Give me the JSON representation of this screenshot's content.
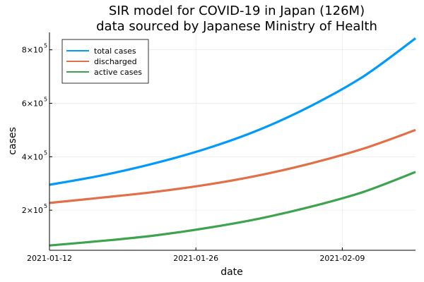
{
  "chart_data": {
    "type": "line",
    "title": "SIR model for COVID-19 in Japan (126M)",
    "subtitle": "data sourced by Japanese Ministry of Health",
    "xlabel": "date",
    "ylabel": "cases",
    "x_start": "2021-01-12",
    "x_end": "2021-02-16",
    "xlim": [
      "2021-01-12",
      "2021-02-16"
    ],
    "ylim": [
      50000,
      865000
    ],
    "x_ticks": [
      "2021-01-12",
      "2021-01-26",
      "2021-02-09"
    ],
    "y_ticks": [
      {
        "value": 200000,
        "mantissa": "2×10",
        "exponent": "5"
      },
      {
        "value": 400000,
        "mantissa": "4×10",
        "exponent": "5"
      },
      {
        "value": 600000,
        "mantissa": "6×10",
        "exponent": "5"
      },
      {
        "value": 800000,
        "mantissa": "8×10",
        "exponent": "5"
      }
    ],
    "grid": true,
    "legend_position": "top-left",
    "dates": [
      "2021-01-12",
      "2021-01-17",
      "2021-01-22",
      "2021-01-27",
      "2021-02-01",
      "2021-02-06",
      "2021-02-11",
      "2021-02-16"
    ],
    "series": [
      {
        "name": "total cases",
        "color": "#009AFA",
        "values": [
          295000,
          330000,
          375000,
          430000,
          500000,
          590000,
          700000,
          843000
        ]
      },
      {
        "name": "discharged",
        "color": "#E26F46",
        "values": [
          227000,
          247000,
          268000,
          295000,
          330000,
          375000,
          430000,
          500000
        ]
      },
      {
        "name": "active cases",
        "color": "#3DA44D",
        "values": [
          68000,
          85000,
          105000,
          133000,
          168000,
          213000,
          268000,
          343000
        ]
      }
    ]
  }
}
